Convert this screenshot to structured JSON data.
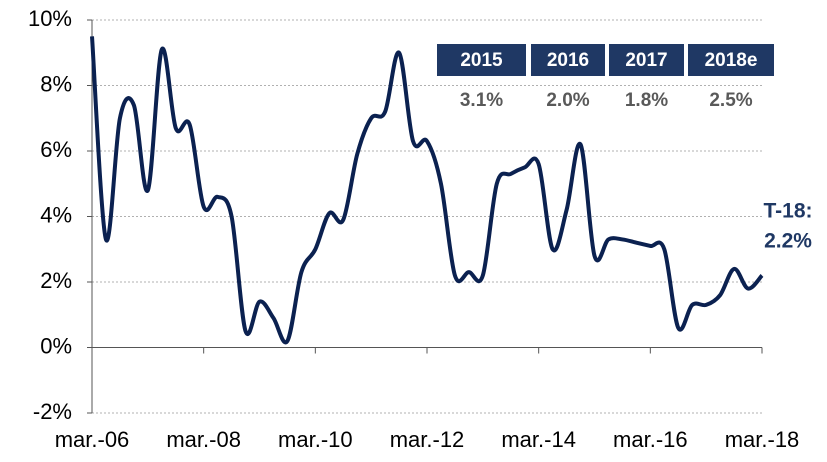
{
  "chart_data": {
    "type": "line",
    "categories": [
      "mar.-06",
      null,
      null,
      null,
      null,
      null,
      null,
      null,
      "mar.-08",
      null,
      null,
      null,
      null,
      null,
      null,
      null,
      "mar.-10",
      null,
      null,
      null,
      null,
      null,
      null,
      null,
      "mar.-12",
      null,
      null,
      null,
      null,
      null,
      null,
      null,
      "mar.-14",
      null,
      null,
      null,
      null,
      null,
      null,
      null,
      "mar.-16",
      null,
      null,
      null,
      null,
      null,
      null,
      null,
      "mar.-18"
    ],
    "series": [
      {
        "color": "#0b2150",
        "values": [
          9.5,
          3.3,
          7.0,
          7.4,
          4.8,
          9.1,
          6.7,
          6.8,
          4.3,
          4.6,
          4.0,
          0.5,
          1.4,
          0.9,
          0.2,
          2.3,
          3.0,
          4.1,
          3.9,
          5.9,
          7.0,
          7.2,
          9.0,
          6.3,
          6.3,
          5.0,
          2.2,
          2.3,
          2.2,
          5.0,
          5.3,
          5.5,
          5.6,
          3.0,
          4.2,
          6.2,
          2.8,
          3.3,
          3.3,
          3.2,
          3.1,
          3.0,
          0.6,
          1.3,
          1.3,
          1.6,
          2.4,
          1.8,
          2.2
        ]
      }
    ],
    "ylim": [
      -2,
      10
    ],
    "yticks": [
      {
        "value": -2,
        "label": "-2%"
      },
      {
        "value": 0,
        "label": "0%"
      },
      {
        "value": 2,
        "label": "2%"
      },
      {
        "value": 4,
        "label": "4%"
      },
      {
        "value": 6,
        "label": "6%"
      },
      {
        "value": 8,
        "label": "8%"
      },
      {
        "value": 10,
        "label": "10%"
      }
    ],
    "grid": true,
    "annotations": [
      "T-18:",
      "2.2%"
    ],
    "table": {
      "headers": [
        "2015",
        "2016",
        "2017",
        "2018e"
      ],
      "values": [
        "3.1%",
        "2.0%",
        "1.8%",
        "2.5%"
      ]
    }
  }
}
